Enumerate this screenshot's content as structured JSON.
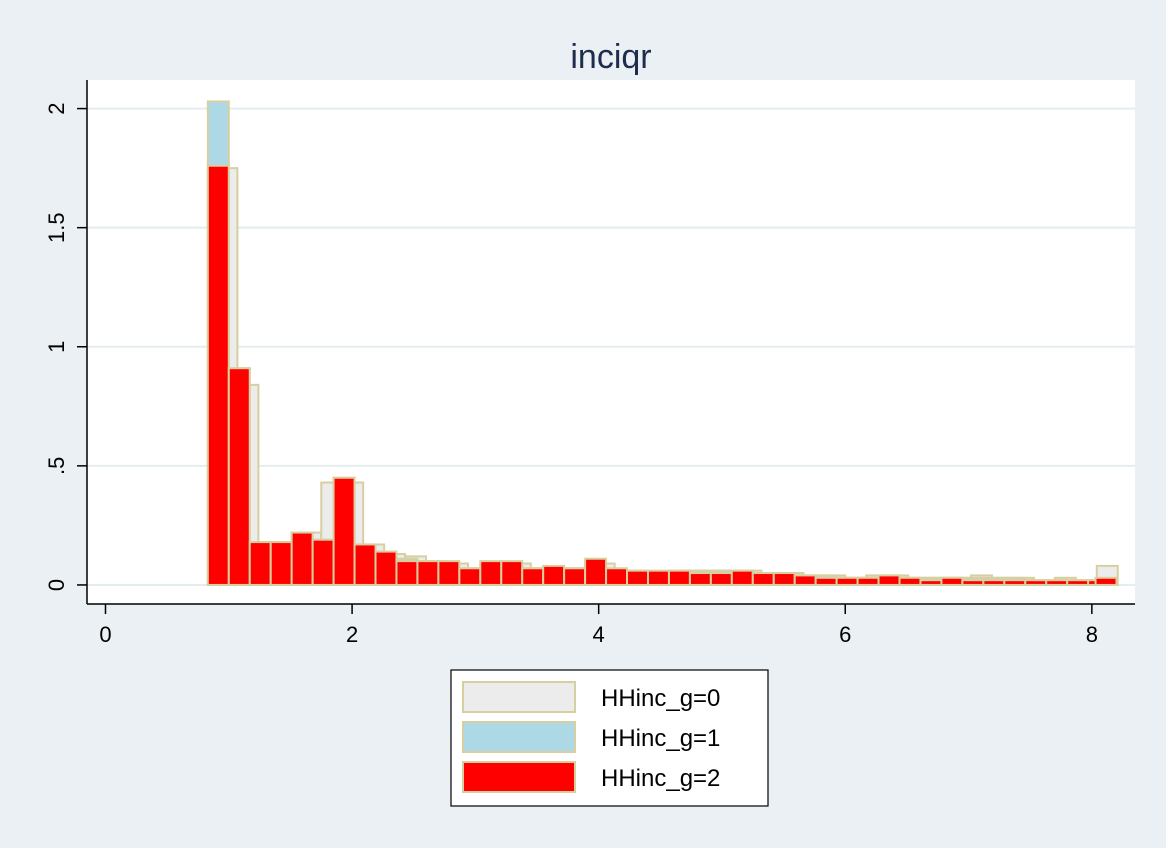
{
  "chart_data": {
    "type": "bar",
    "title": "inciqr",
    "xlabel": "",
    "ylabel": "",
    "xlim": [
      -0.15,
      8.35
    ],
    "ylim": [
      -0.08,
      2.12
    ],
    "x_ticks": [
      0,
      2,
      4,
      6,
      8
    ],
    "y_ticks": [
      0,
      0.5,
      1,
      1.5,
      2
    ],
    "x_tick_labels": [
      "0",
      "2",
      "4",
      "6",
      "8"
    ],
    "y_tick_labels": [
      "0",
      ".5",
      "1",
      "1.5",
      "2"
    ],
    "grid": true,
    "legend_position": "bottom",
    "bin_width": 0.17,
    "series": [
      {
        "name": "HHinc_g=0",
        "color": "#ececec",
        "edge_color": "#d8cfa0",
        "bins": [
          {
            "x": 0.9,
            "y": 1.75
          },
          {
            "x": 1.07,
            "y": 0.84
          },
          {
            "x": 1.24,
            "y": 0.18
          },
          {
            "x": 1.41,
            "y": 0.18
          },
          {
            "x": 1.58,
            "y": 0.22
          },
          {
            "x": 1.75,
            "y": 0.43
          },
          {
            "x": 1.92,
            "y": 0.43
          },
          {
            "x": 2.09,
            "y": 0.17
          },
          {
            "x": 2.26,
            "y": 0.13
          },
          {
            "x": 2.43,
            "y": 0.12
          },
          {
            "x": 2.6,
            "y": 0.1
          },
          {
            "x": 2.77,
            "y": 0.09
          },
          {
            "x": 2.94,
            "y": 0.07
          },
          {
            "x": 3.11,
            "y": 0.09
          },
          {
            "x": 3.28,
            "y": 0.09
          },
          {
            "x": 3.45,
            "y": 0.07
          },
          {
            "x": 3.62,
            "y": 0.07
          },
          {
            "x": 3.79,
            "y": 0.07
          },
          {
            "x": 3.96,
            "y": 0.09
          },
          {
            "x": 4.13,
            "y": 0.06
          },
          {
            "x": 4.3,
            "y": 0.05
          },
          {
            "x": 4.47,
            "y": 0.05
          },
          {
            "x": 4.64,
            "y": 0.06
          },
          {
            "x": 4.81,
            "y": 0.06
          },
          {
            "x": 4.98,
            "y": 0.06
          },
          {
            "x": 5.15,
            "y": 0.06
          },
          {
            "x": 5.32,
            "y": 0.05
          },
          {
            "x": 5.49,
            "y": 0.05
          },
          {
            "x": 5.66,
            "y": 0.04
          },
          {
            "x": 5.83,
            "y": 0.04
          },
          {
            "x": 6.0,
            "y": 0.03
          },
          {
            "x": 6.17,
            "y": 0.04
          },
          {
            "x": 6.34,
            "y": 0.04
          },
          {
            "x": 6.51,
            "y": 0.03
          },
          {
            "x": 6.68,
            "y": 0.03
          },
          {
            "x": 6.85,
            "y": 0.03
          },
          {
            "x": 7.02,
            "y": 0.04
          },
          {
            "x": 7.19,
            "y": 0.03
          },
          {
            "x": 7.36,
            "y": 0.03
          },
          {
            "x": 7.53,
            "y": 0.02
          },
          {
            "x": 7.7,
            "y": 0.03
          },
          {
            "x": 7.87,
            "y": 0.02
          },
          {
            "x": 8.04,
            "y": 0.08
          }
        ]
      },
      {
        "name": "HHinc_g=1",
        "color": "#add8e6",
        "edge_color": "#d8cfa0",
        "bins": [
          {
            "x": 0.83,
            "y": 2.03
          },
          {
            "x": 1.0,
            "y": 0.91
          },
          {
            "x": 1.17,
            "y": 0.18
          },
          {
            "x": 1.34,
            "y": 0.18
          },
          {
            "x": 1.51,
            "y": 0.22
          },
          {
            "x": 1.68,
            "y": 0.19
          },
          {
            "x": 1.85,
            "y": 0.45
          },
          {
            "x": 2.02,
            "y": 0.17
          },
          {
            "x": 2.19,
            "y": 0.14
          },
          {
            "x": 2.36,
            "y": 0.11
          },
          {
            "x": 2.53,
            "y": 0.1
          },
          {
            "x": 2.7,
            "y": 0.09
          },
          {
            "x": 2.87,
            "y": 0.07
          },
          {
            "x": 3.04,
            "y": 0.09
          },
          {
            "x": 3.21,
            "y": 0.09
          },
          {
            "x": 3.38,
            "y": 0.07
          },
          {
            "x": 3.55,
            "y": 0.07
          },
          {
            "x": 3.72,
            "y": 0.07
          },
          {
            "x": 3.89,
            "y": 0.1
          },
          {
            "x": 4.06,
            "y": 0.06
          },
          {
            "x": 4.23,
            "y": 0.06
          },
          {
            "x": 4.4,
            "y": 0.05
          },
          {
            "x": 4.57,
            "y": 0.06
          },
          {
            "x": 4.74,
            "y": 0.06
          },
          {
            "x": 4.91,
            "y": 0.06
          },
          {
            "x": 5.08,
            "y": 0.06
          },
          {
            "x": 5.25,
            "y": 0.05
          },
          {
            "x": 5.42,
            "y": 0.05
          },
          {
            "x": 5.59,
            "y": 0.04
          },
          {
            "x": 5.76,
            "y": 0.04
          },
          {
            "x": 5.93,
            "y": 0.03
          },
          {
            "x": 6.1,
            "y": 0.03
          },
          {
            "x": 6.27,
            "y": 0.04
          },
          {
            "x": 6.44,
            "y": 0.03
          },
          {
            "x": 6.61,
            "y": 0.03
          },
          {
            "x": 6.78,
            "y": 0.03
          },
          {
            "x": 6.95,
            "y": 0.03
          },
          {
            "x": 7.12,
            "y": 0.03
          },
          {
            "x": 7.29,
            "y": 0.03
          },
          {
            "x": 7.46,
            "y": 0.02
          },
          {
            "x": 7.63,
            "y": 0.02
          },
          {
            "x": 7.8,
            "y": 0.02
          },
          {
            "x": 7.97,
            "y": 0.02
          }
        ]
      },
      {
        "name": "HHinc_g=2",
        "color": "#ff0000",
        "edge_color": "#d8cfa0",
        "bins": [
          {
            "x": 0.83,
            "y": 1.76
          },
          {
            "x": 1.0,
            "y": 0.91
          },
          {
            "x": 1.17,
            "y": 0.18
          },
          {
            "x": 1.34,
            "y": 0.18
          },
          {
            "x": 1.51,
            "y": 0.22
          },
          {
            "x": 1.68,
            "y": 0.19
          },
          {
            "x": 1.85,
            "y": 0.45
          },
          {
            "x": 2.02,
            "y": 0.17
          },
          {
            "x": 2.19,
            "y": 0.14
          },
          {
            "x": 2.36,
            "y": 0.1
          },
          {
            "x": 2.53,
            "y": 0.1
          },
          {
            "x": 2.7,
            "y": 0.1
          },
          {
            "x": 2.87,
            "y": 0.07
          },
          {
            "x": 3.04,
            "y": 0.1
          },
          {
            "x": 3.21,
            "y": 0.1
          },
          {
            "x": 3.38,
            "y": 0.07
          },
          {
            "x": 3.55,
            "y": 0.08
          },
          {
            "x": 3.72,
            "y": 0.07
          },
          {
            "x": 3.89,
            "y": 0.11
          },
          {
            "x": 4.06,
            "y": 0.07
          },
          {
            "x": 4.23,
            "y": 0.06
          },
          {
            "x": 4.4,
            "y": 0.06
          },
          {
            "x": 4.57,
            "y": 0.06
          },
          {
            "x": 4.74,
            "y": 0.05
          },
          {
            "x": 4.91,
            "y": 0.05
          },
          {
            "x": 5.08,
            "y": 0.06
          },
          {
            "x": 5.25,
            "y": 0.05
          },
          {
            "x": 5.42,
            "y": 0.05
          },
          {
            "x": 5.59,
            "y": 0.04
          },
          {
            "x": 5.76,
            "y": 0.03
          },
          {
            "x": 5.93,
            "y": 0.03
          },
          {
            "x": 6.1,
            "y": 0.03
          },
          {
            "x": 6.27,
            "y": 0.04
          },
          {
            "x": 6.44,
            "y": 0.03
          },
          {
            "x": 6.61,
            "y": 0.02
          },
          {
            "x": 6.78,
            "y": 0.03
          },
          {
            "x": 6.95,
            "y": 0.02
          },
          {
            "x": 7.12,
            "y": 0.02
          },
          {
            "x": 7.29,
            "y": 0.02
          },
          {
            "x": 7.46,
            "y": 0.02
          },
          {
            "x": 7.63,
            "y": 0.02
          },
          {
            "x": 7.8,
            "y": 0.02
          },
          {
            "x": 7.97,
            "y": 0.02
          },
          {
            "x": 8.03,
            "y": 0.03
          }
        ]
      }
    ]
  }
}
